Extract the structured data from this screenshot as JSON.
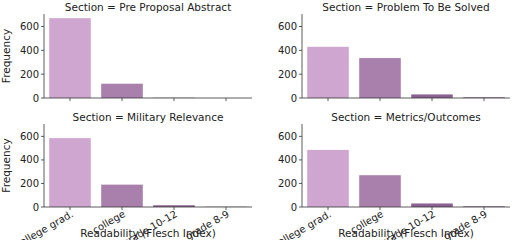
{
  "chart_data": [
    {
      "type": "bar",
      "title": "Section = Pre Proposal Abstract",
      "categories": [
        "college grad.",
        "college",
        "grade 10-12",
        "grade 8-9"
      ],
      "values": [
        670,
        120,
        2,
        0
      ],
      "colors": [
        "#cfa6cf",
        "#a97fac",
        "#8a6190",
        "#6b4a72"
      ],
      "ylim": [
        0,
        705
      ],
      "yticks": [
        0,
        200,
        400,
        600
      ],
      "y_label": "Frequency",
      "tick_labels": "y"
    },
    {
      "type": "bar",
      "title": "Section = Problem To Be Solved",
      "categories": [
        "college grad.",
        "college",
        "grade 10-12",
        "grade 8-9"
      ],
      "values": [
        430,
        335,
        30,
        5
      ],
      "colors": [
        "#cfa6cf",
        "#a97fac",
        "#8a6190",
        "#6b4a72"
      ],
      "ylim": [
        0,
        705
      ],
      "yticks": [
        0,
        200,
        400,
        600
      ],
      "tick_labels": "y"
    },
    {
      "type": "bar",
      "title": "Section = Military Relevance",
      "categories": [
        "college grad.",
        "college",
        "grade 10-12",
        "grade 8-9"
      ],
      "values": [
        585,
        190,
        15,
        2
      ],
      "colors": [
        "#cfa6cf",
        "#a97fac",
        "#8a6190",
        "#6b4a72"
      ],
      "ylim": [
        0,
        705
      ],
      "yticks": [
        0,
        200,
        400,
        600
      ],
      "x_label": "Readability (Flesch Index)",
      "y_label": "Frequency"
    },
    {
      "type": "bar",
      "title": "Section = Metrics/Outcomes",
      "categories": [
        "college grad.",
        "college",
        "grade 10-12",
        "grade 8-9"
      ],
      "values": [
        485,
        270,
        30,
        5
      ],
      "colors": [
        "#cfa6cf",
        "#a97fac",
        "#8a6190",
        "#6b4a72"
      ],
      "ylim": [
        0,
        705
      ],
      "yticks": [
        0,
        200,
        400,
        600
      ],
      "x_label": "Readability (Flesch Index)"
    }
  ]
}
